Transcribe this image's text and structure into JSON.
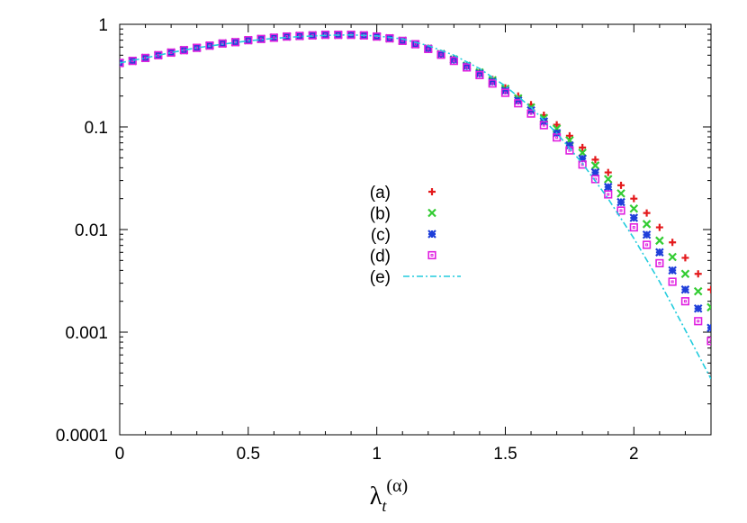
{
  "chart_data": {
    "type": "scatter",
    "title": "",
    "xlabel": "λ_t^(α)",
    "xlabel_parts": {
      "base": "λ",
      "sub": "t",
      "sup": "(α)"
    },
    "ylabel": "",
    "xlim": [
      0,
      2.3
    ],
    "ylim": [
      0.0001,
      1
    ],
    "yscale": "log",
    "grid": false,
    "legend_position": "center",
    "x_ticks": [
      {
        "v": 0,
        "label": "0"
      },
      {
        "v": 0.5,
        "label": "0.5"
      },
      {
        "v": 1,
        "label": "1"
      },
      {
        "v": 1.5,
        "label": "1.5"
      },
      {
        "v": 2,
        "label": "2"
      }
    ],
    "y_ticks": [
      {
        "v": 0.0001,
        "label": "0.0001"
      },
      {
        "v": 0.001,
        "label": "0.001"
      },
      {
        "v": 0.01,
        "label": "0.01"
      },
      {
        "v": 0.1,
        "label": "0.1"
      },
      {
        "v": 1,
        "label": "1"
      }
    ],
    "series": [
      {
        "name": "(a)",
        "marker": "plus",
        "color": "#e41a1c",
        "x": [
          0.0,
          0.05,
          0.1,
          0.15,
          0.2,
          0.25,
          0.3,
          0.35,
          0.4,
          0.45,
          0.5,
          0.55,
          0.6,
          0.65,
          0.7,
          0.75,
          0.8,
          0.85,
          0.9,
          0.95,
          1.0,
          1.05,
          1.1,
          1.15,
          1.2,
          1.25,
          1.3,
          1.35,
          1.4,
          1.45,
          1.5,
          1.55,
          1.6,
          1.65,
          1.7,
          1.75,
          1.8,
          1.85,
          1.9,
          1.95,
          2.0,
          2.05,
          2.1,
          2.15,
          2.2,
          2.25,
          2.3
        ],
        "y": [
          0.42,
          0.44,
          0.47,
          0.5,
          0.53,
          0.56,
          0.59,
          0.62,
          0.65,
          0.67,
          0.7,
          0.72,
          0.74,
          0.76,
          0.77,
          0.78,
          0.79,
          0.79,
          0.79,
          0.78,
          0.76,
          0.73,
          0.69,
          0.64,
          0.585,
          0.52,
          0.46,
          0.4,
          0.345,
          0.29,
          0.24,
          0.2,
          0.165,
          0.13,
          0.105,
          0.082,
          0.063,
          0.048,
          0.036,
          0.027,
          0.02,
          0.0145,
          0.0105,
          0.0075,
          0.0053,
          0.0037,
          0.0026
        ]
      },
      {
        "name": "(b)",
        "marker": "cross",
        "color": "#33cc33",
        "x": [
          0.0,
          0.05,
          0.1,
          0.15,
          0.2,
          0.25,
          0.3,
          0.35,
          0.4,
          0.45,
          0.5,
          0.55,
          0.6,
          0.65,
          0.7,
          0.75,
          0.8,
          0.85,
          0.9,
          0.95,
          1.0,
          1.05,
          1.1,
          1.15,
          1.2,
          1.25,
          1.3,
          1.35,
          1.4,
          1.45,
          1.5,
          1.55,
          1.6,
          1.65,
          1.7,
          1.75,
          1.8,
          1.85,
          1.9,
          1.95,
          2.0,
          2.05,
          2.1,
          2.15,
          2.2,
          2.25,
          2.3
        ],
        "y": [
          0.42,
          0.44,
          0.47,
          0.5,
          0.53,
          0.56,
          0.59,
          0.62,
          0.65,
          0.67,
          0.7,
          0.72,
          0.74,
          0.76,
          0.77,
          0.78,
          0.79,
          0.79,
          0.79,
          0.78,
          0.76,
          0.73,
          0.69,
          0.64,
          0.58,
          0.515,
          0.455,
          0.395,
          0.34,
          0.285,
          0.235,
          0.19,
          0.155,
          0.122,
          0.096,
          0.074,
          0.056,
          0.042,
          0.031,
          0.0225,
          0.016,
          0.0113,
          0.0078,
          0.0054,
          0.0037,
          0.0025,
          0.00175
        ]
      },
      {
        "name": "(c)",
        "marker": "star",
        "color": "#1f3fd9",
        "x": [
          0.0,
          0.05,
          0.1,
          0.15,
          0.2,
          0.25,
          0.3,
          0.35,
          0.4,
          0.45,
          0.5,
          0.55,
          0.6,
          0.65,
          0.7,
          0.75,
          0.8,
          0.85,
          0.9,
          0.95,
          1.0,
          1.05,
          1.1,
          1.15,
          1.2,
          1.25,
          1.3,
          1.35,
          1.4,
          1.45,
          1.5,
          1.55,
          1.6,
          1.65,
          1.7,
          1.75,
          1.8,
          1.85,
          1.9,
          1.95,
          2.0,
          2.05,
          2.1,
          2.15,
          2.2,
          2.25,
          2.3
        ],
        "y": [
          0.42,
          0.44,
          0.47,
          0.5,
          0.53,
          0.56,
          0.59,
          0.62,
          0.65,
          0.67,
          0.7,
          0.72,
          0.74,
          0.76,
          0.77,
          0.78,
          0.79,
          0.79,
          0.79,
          0.78,
          0.76,
          0.73,
          0.69,
          0.64,
          0.58,
          0.51,
          0.45,
          0.39,
          0.33,
          0.275,
          0.225,
          0.18,
          0.145,
          0.113,
          0.087,
          0.066,
          0.049,
          0.036,
          0.026,
          0.0185,
          0.013,
          0.0089,
          0.006,
          0.004,
          0.0026,
          0.0017,
          0.0011
        ]
      },
      {
        "name": "(d)",
        "marker": "square",
        "color": "#e020e0",
        "x": [
          0.0,
          0.05,
          0.1,
          0.15,
          0.2,
          0.25,
          0.3,
          0.35,
          0.4,
          0.45,
          0.5,
          0.55,
          0.6,
          0.65,
          0.7,
          0.75,
          0.8,
          0.85,
          0.9,
          0.95,
          1.0,
          1.05,
          1.1,
          1.15,
          1.2,
          1.25,
          1.3,
          1.35,
          1.4,
          1.45,
          1.5,
          1.55,
          1.6,
          1.65,
          1.7,
          1.75,
          1.8,
          1.85,
          1.9,
          1.95,
          2.0,
          2.05,
          2.1,
          2.15,
          2.2,
          2.25,
          2.3
        ],
        "y": [
          0.42,
          0.44,
          0.47,
          0.5,
          0.53,
          0.56,
          0.59,
          0.62,
          0.65,
          0.67,
          0.7,
          0.72,
          0.74,
          0.76,
          0.77,
          0.78,
          0.79,
          0.79,
          0.79,
          0.78,
          0.76,
          0.73,
          0.69,
          0.64,
          0.575,
          0.505,
          0.44,
          0.38,
          0.32,
          0.265,
          0.215,
          0.17,
          0.135,
          0.104,
          0.079,
          0.059,
          0.043,
          0.031,
          0.022,
          0.0153,
          0.0105,
          0.0071,
          0.0047,
          0.0031,
          0.002,
          0.00128,
          0.00082
        ]
      },
      {
        "name": "(e)",
        "marker": "line",
        "style": "dash-dot",
        "color": "#22ccdd",
        "x": [
          0.0,
          0.1,
          0.2,
          0.3,
          0.4,
          0.5,
          0.6,
          0.7,
          0.8,
          0.9,
          1.0,
          1.1,
          1.2,
          1.3,
          1.4,
          1.5,
          1.6,
          1.7,
          1.8,
          1.9,
          2.0,
          2.1,
          2.2,
          2.3
        ],
        "y": [
          0.42,
          0.47,
          0.53,
          0.59,
          0.64,
          0.69,
          0.73,
          0.76,
          0.78,
          0.79,
          0.77,
          0.72,
          0.62,
          0.5,
          0.37,
          0.25,
          0.155,
          0.087,
          0.044,
          0.02,
          0.0082,
          0.0031,
          0.00105,
          0.00035
        ]
      }
    ]
  }
}
